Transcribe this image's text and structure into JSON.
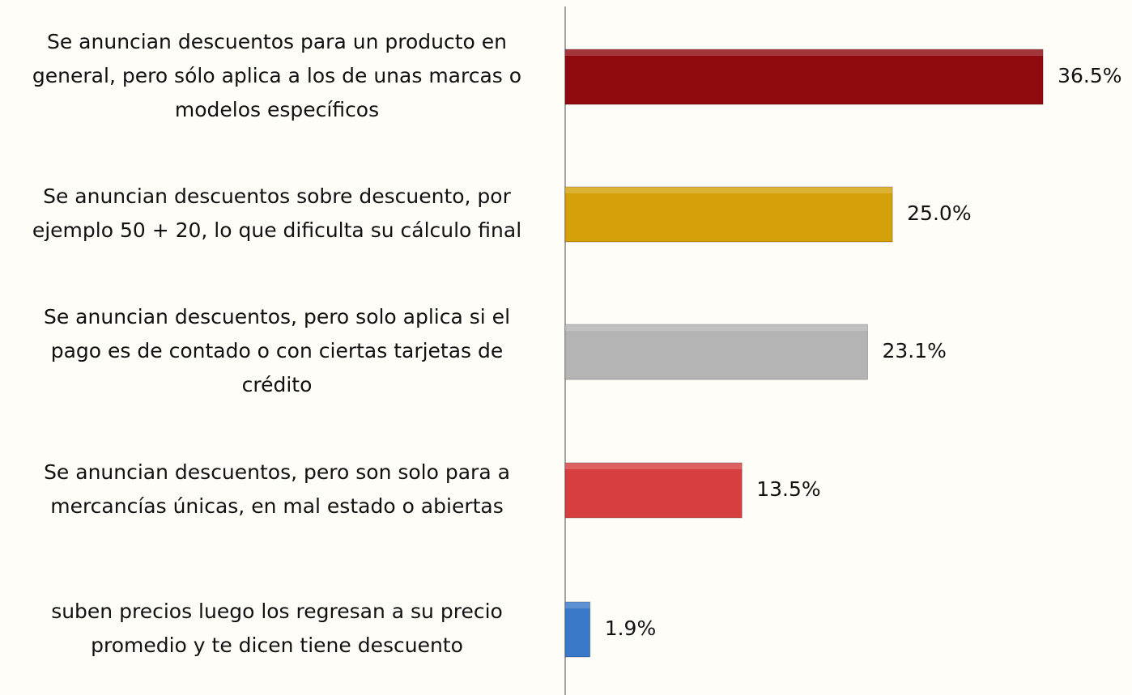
{
  "chart_data": {
    "type": "barh",
    "categories": [
      [
        "Se anuncian descuentos para un producto en",
        "general, pero sólo aplica a los de unas marcas o",
        "modelos específicos"
      ],
      [
        "Se anuncian descuentos sobre descuento, por",
        "ejemplo 50 + 20, lo que dificulta su cálculo final"
      ],
      [
        "Se anuncian descuentos, pero solo aplica si el",
        "pago es de contado o con ciertas tarjetas de",
        "crédito"
      ],
      [
        "Se anuncian descuentos, pero son solo para a",
        "mercancías únicas, en mal estado o abiertas"
      ],
      [
        "suben precios luego los regresan a su precio",
        "promedio y te dicen tiene descuento"
      ]
    ],
    "values": [
      36.5,
      25.0,
      23.1,
      13.5,
      1.9
    ],
    "value_labels": [
      "36.5%",
      "25.0%",
      "23.1%",
      "13.5%",
      "1.9%"
    ],
    "colors": [
      "#8e0a0f",
      "#d4a10a",
      "#b4b4b4",
      "#d63f3f",
      "#3a78c8"
    ],
    "xlim": [
      0,
      43.3
    ]
  }
}
